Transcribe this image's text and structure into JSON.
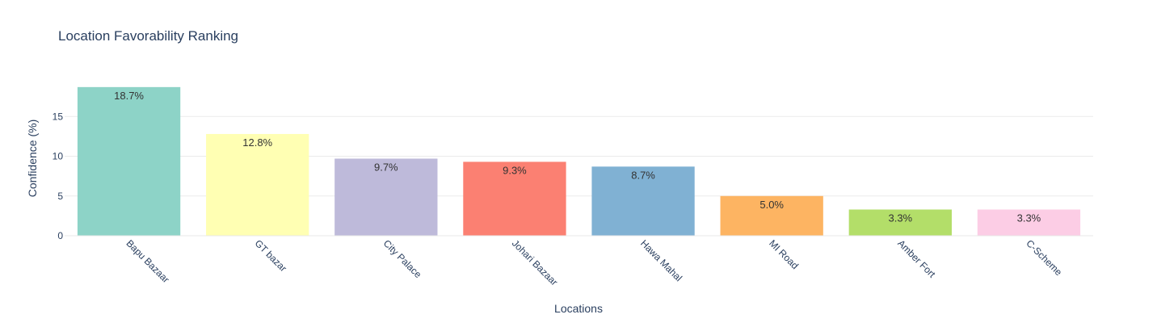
{
  "chart_data": {
    "type": "bar",
    "title": "Location Favorability Ranking",
    "xlabel": "Locations",
    "ylabel": "Confidence (%)",
    "categories": [
      "Bapu Bazaar",
      "GT bazar",
      "City Palace",
      "Johari Bazaar",
      "Hawa Mahal",
      "MI Road",
      "Amber Fort",
      "C-Scheme"
    ],
    "values": [
      18.7,
      12.8,
      9.7,
      9.3,
      8.7,
      5.0,
      3.3,
      3.3
    ],
    "value_labels": [
      "18.7%",
      "12.8%",
      "9.7%",
      "9.3%",
      "8.7%",
      "5.0%",
      "3.3%",
      "3.3%"
    ],
    "colors": [
      "#8dd3c7",
      "#ffffb3",
      "#bebada",
      "#fb8072",
      "#80b1d3",
      "#fdb462",
      "#b3de69",
      "#fccde5"
    ],
    "yticks": [
      0,
      5,
      10,
      15
    ],
    "ylim": [
      0,
      19.7
    ],
    "grid": true,
    "legend": false
  }
}
